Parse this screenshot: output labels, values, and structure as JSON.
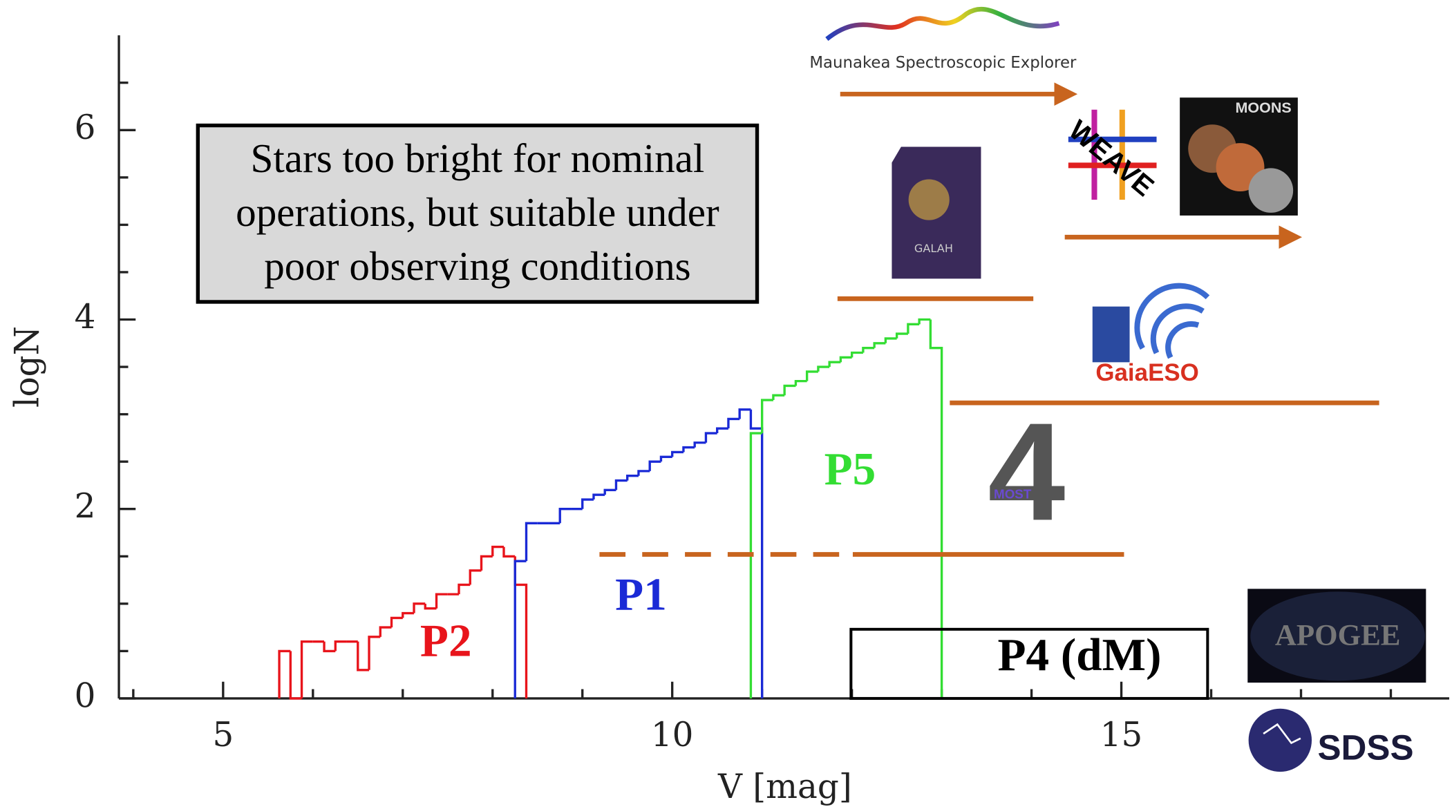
{
  "chart_data": {
    "type": "step-histogram",
    "xlabel": "V [mag]",
    "ylabel": "logN",
    "xlim": [
      3.84,
      18.65
    ],
    "ylim": [
      0,
      7
    ],
    "xticks": [
      5,
      10,
      15
    ],
    "yticks": [
      0,
      2,
      4,
      6
    ],
    "xminor": [
      4,
      6,
      7,
      8,
      9,
      11,
      12,
      13,
      14,
      16,
      17,
      18
    ],
    "yminor": [
      0.5,
      1,
      1.5,
      2.5,
      3,
      3.5,
      4.5,
      5,
      5.5,
      6.5
    ],
    "series": [
      {
        "name": "P2",
        "color": "#e8141b",
        "bins": [
          5.625,
          5.75,
          5.875,
          6,
          6.125,
          6.25,
          6.375,
          6.5,
          6.625,
          6.75,
          6.875,
          7,
          7.125,
          7.25,
          7.375,
          7.5,
          7.625,
          7.75,
          7.875,
          8,
          8.125,
          8.25,
          8.375
        ],
        "values": [
          0.5,
          0,
          0.6,
          0.6,
          0.5,
          0.6,
          0.6,
          0.3,
          0.65,
          0.75,
          0.85,
          0.9,
          1.0,
          0.95,
          1.1,
          1.1,
          1.2,
          1.35,
          1.5,
          1.6,
          1.5,
          1.2
        ]
      },
      {
        "name": "P1",
        "color": "#1a2ad6",
        "bins": [
          8.25,
          8.375,
          8.5,
          8.625,
          8.75,
          8.875,
          9,
          9.125,
          9.25,
          9.375,
          9.5,
          9.625,
          9.75,
          9.875,
          10,
          10.125,
          10.25,
          10.375,
          10.5,
          10.625,
          10.75,
          10.875,
          11
        ],
        "values": [
          1.45,
          1.85,
          1.85,
          1.85,
          2.0,
          2.0,
          2.1,
          2.15,
          2.2,
          2.3,
          2.35,
          2.4,
          2.5,
          2.55,
          2.6,
          2.65,
          2.7,
          2.8,
          2.85,
          2.95,
          3.05,
          2.85
        ]
      },
      {
        "name": "P5",
        "color": "#33dd33",
        "bins": [
          10.875,
          11,
          11.125,
          11.25,
          11.375,
          11.5,
          11.625,
          11.75,
          11.875,
          12,
          12.125,
          12.25,
          12.375,
          12.5,
          12.625,
          12.75,
          12.875,
          13
        ],
        "values": [
          2.8,
          3.15,
          3.2,
          3.3,
          3.35,
          3.45,
          3.5,
          3.55,
          3.6,
          3.65,
          3.7,
          3.75,
          3.8,
          3.85,
          3.95,
          4.0,
          3.7
        ]
      }
    ],
    "segment_color": "#c8641e",
    "segments": [
      {
        "x": [
          11.87,
          14.46
        ],
        "y": 6.38,
        "arrow": true
      },
      {
        "x": [
          14.37,
          16.96
        ],
        "y": 4.87,
        "arrow": true
      },
      {
        "x": [
          11.84,
          14.02
        ],
        "y": 4.22,
        "arrow": false
      },
      {
        "x": [
          13.09,
          17.87
        ],
        "y": 3.12,
        "arrow": false
      },
      {
        "x": [
          9.19,
          12.01
        ],
        "y": 1.52,
        "arrow": false,
        "dashed": true
      },
      {
        "x": [
          12.01,
          15.03
        ],
        "y": 1.52,
        "arrow": false
      }
    ],
    "box": {
      "label": "P4 (dM)",
      "x": [
        11.99,
        15.96
      ],
      "y": [
        0,
        0.73
      ]
    },
    "annotation": [
      "Stars too bright for nominal",
      "operations, but suitable under",
      "poor observing conditions"
    ],
    "logos": [
      {
        "label": "Maunakea Spectroscopic Explorer"
      },
      {
        "label": "WEAVE"
      },
      {
        "label": "MOONS"
      },
      {
        "label": "GALAH"
      },
      {
        "label": "GaiaESO"
      },
      {
        "label": "4"
      },
      {
        "label": "MOST"
      },
      {
        "label": "APOGEE"
      },
      {
        "label": "SDSS"
      }
    ]
  }
}
